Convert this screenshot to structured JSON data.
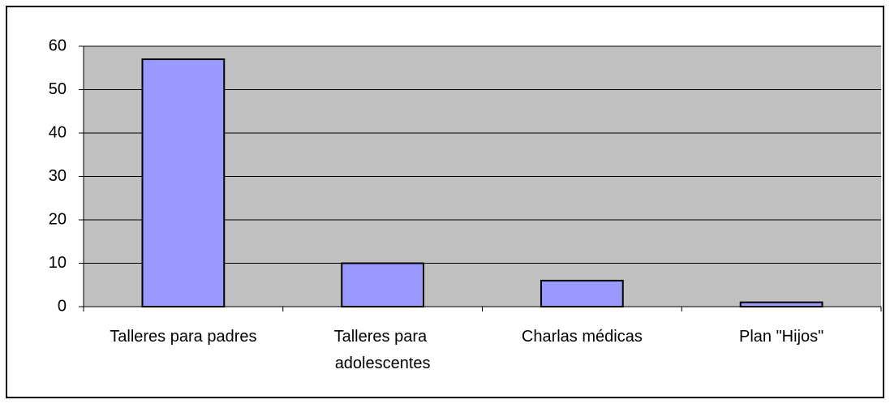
{
  "chart_data": {
    "type": "bar",
    "categories": [
      "Talleres para padres",
      "Talleres para adolescentes",
      "Charlas médicas",
      "Plan \"Hijos\""
    ],
    "values": [
      57,
      10,
      6,
      1
    ],
    "color": "#9999ff",
    "ylim": [
      0,
      60
    ],
    "yticks": [
      0,
      10,
      20,
      30,
      40,
      50,
      60
    ],
    "grid": true
  }
}
